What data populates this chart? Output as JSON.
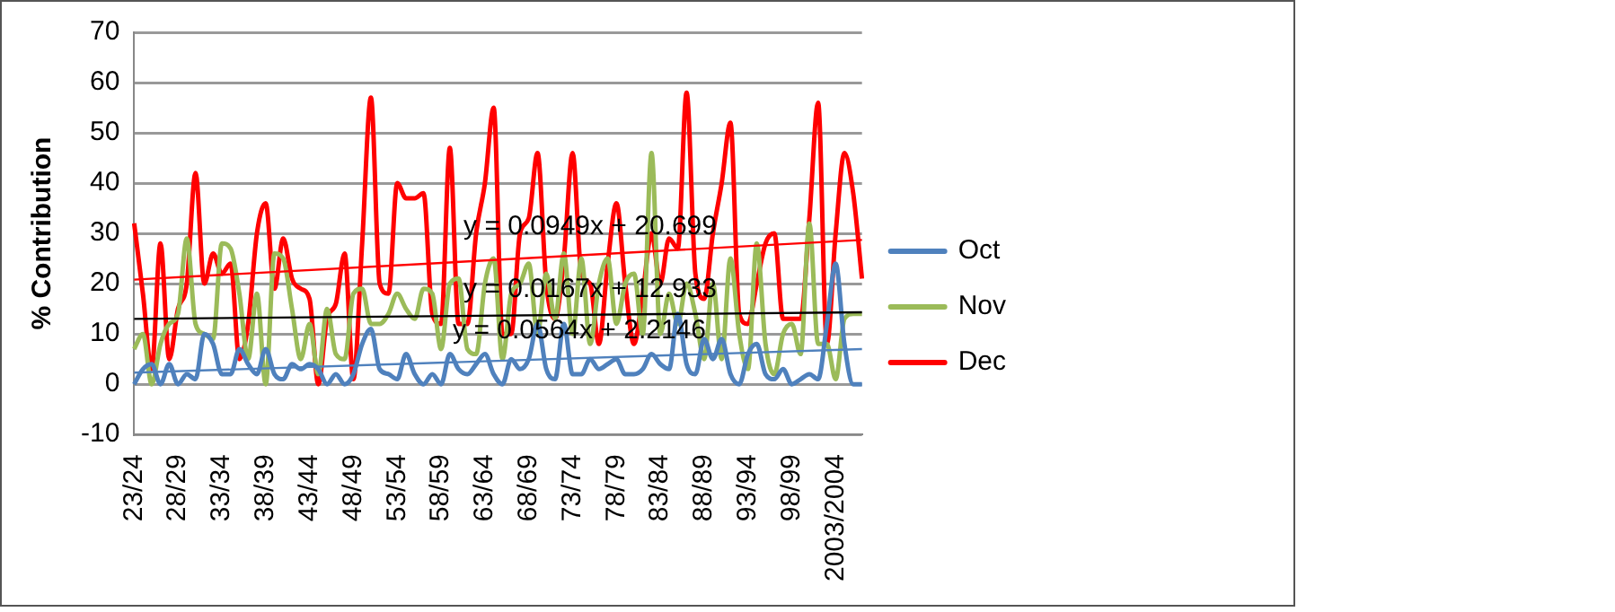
{
  "chart_data": {
    "type": "line",
    "ylabel": "% Contribution",
    "categories": [
      "23/24",
      null,
      null,
      null,
      null,
      "28/29",
      null,
      null,
      null,
      null,
      "33/34",
      null,
      null,
      null,
      null,
      "38/39",
      null,
      null,
      null,
      null,
      "43/44",
      null,
      null,
      null,
      null,
      "48/49",
      null,
      null,
      null,
      null,
      "53/54",
      null,
      null,
      null,
      null,
      "58/59",
      null,
      null,
      null,
      null,
      "63/64",
      null,
      null,
      null,
      null,
      "68/69",
      null,
      null,
      null,
      null,
      "73/74",
      null,
      null,
      null,
      null,
      "78/79",
      null,
      null,
      null,
      null,
      "83/84",
      null,
      null,
      null,
      null,
      "88/89",
      null,
      null,
      null,
      null,
      "93/94",
      null,
      null,
      null,
      null,
      "98/99",
      null,
      null,
      null,
      null,
      "2003/2004",
      null,
      null,
      null
    ],
    "series": [
      {
        "name": "Oct",
        "color": "#4f81bd",
        "values": [
          0,
          3,
          4,
          0,
          4,
          0,
          2,
          1,
          10,
          8,
          2,
          2,
          7,
          4,
          2,
          7,
          2,
          1,
          4,
          3,
          4,
          3,
          0,
          2,
          0,
          2,
          8,
          11,
          3,
          2,
          1,
          6,
          2,
          0,
          2,
          0,
          6,
          3,
          2,
          4,
          6,
          2,
          0,
          5,
          3,
          5,
          12,
          3,
          1,
          12,
          2,
          2,
          5,
          3,
          4,
          5,
          2,
          2,
          3,
          6,
          4,
          3,
          14,
          4,
          2,
          9,
          5,
          9,
          2,
          0,
          6,
          8,
          2,
          1,
          3,
          0,
          1,
          2,
          1,
          12,
          24,
          8,
          0,
          0
        ]
      },
      {
        "name": "Nov",
        "color": "#9bbb59",
        "values": [
          7,
          10,
          0,
          8,
          12,
          14,
          29,
          12,
          10,
          9,
          28,
          27,
          18,
          5,
          18,
          0,
          26,
          25,
          15,
          5,
          12,
          2,
          15,
          6,
          5,
          18,
          19,
          12,
          12,
          14,
          18,
          15,
          13,
          19,
          18,
          7,
          20,
          21,
          7,
          6,
          20,
          25,
          5,
          18,
          20,
          24,
          10,
          22,
          13,
          26,
          10,
          25,
          8,
          20,
          25,
          12,
          20,
          22,
          10,
          46,
          10,
          18,
          12,
          20,
          14,
          5,
          20,
          5,
          25,
          10,
          3,
          28,
          8,
          2,
          10,
          12,
          6,
          32,
          8,
          8,
          1,
          13,
          14,
          14
        ]
      },
      {
        "name": "Dec",
        "color": "#ff0000",
        "values": [
          32,
          18,
          3,
          28,
          5,
          15,
          20,
          42,
          20,
          26,
          22,
          24,
          5,
          12,
          30,
          36,
          19,
          29,
          21,
          19,
          17,
          0,
          13,
          16,
          26,
          1,
          28,
          57,
          20,
          18,
          40,
          37,
          37,
          38,
          14,
          12,
          47,
          12,
          12,
          30,
          40,
          55,
          10,
          10,
          30,
          33,
          46,
          20,
          13,
          25,
          46,
          22,
          20,
          8,
          24,
          36,
          20,
          8,
          18,
          30,
          20,
          29,
          27,
          58,
          22,
          17,
          30,
          40,
          52,
          14,
          12,
          20,
          28,
          30,
          13,
          13,
          13,
          33,
          56,
          8,
          30,
          46,
          38,
          21
        ]
      },
      {
        "color": "#ff0000",
        "values": [
          20.8,
          null,
          null,
          null,
          null,
          null,
          null,
          null,
          null,
          null,
          null,
          null,
          null,
          null,
          null,
          null,
          null,
          null,
          null,
          null,
          null,
          null,
          null,
          null,
          null,
          null,
          null,
          null,
          null,
          null,
          null,
          null,
          null,
          null,
          null,
          null,
          null,
          null,
          null,
          null,
          null,
          null,
          null,
          null,
          null,
          null,
          null,
          null,
          null,
          null,
          null,
          null,
          null,
          null,
          null,
          null,
          null,
          null,
          null,
          null,
          null,
          null,
          null,
          null,
          null,
          null,
          null,
          null,
          null,
          null,
          null,
          null,
          null,
          null,
          null,
          null,
          null,
          null,
          null,
          null,
          null,
          null,
          null,
          28.7
        ]
      },
      {
        "color": "#000000",
        "values": [
          13.0,
          null,
          null,
          null,
          null,
          null,
          null,
          null,
          null,
          null,
          null,
          null,
          null,
          null,
          null,
          null,
          null,
          null,
          null,
          null,
          null,
          null,
          null,
          null,
          null,
          null,
          null,
          null,
          null,
          null,
          null,
          null,
          null,
          null,
          null,
          null,
          null,
          null,
          null,
          null,
          null,
          null,
          null,
          null,
          null,
          null,
          null,
          null,
          null,
          null,
          null,
          null,
          null,
          null,
          null,
          null,
          null,
          null,
          null,
          null,
          null,
          null,
          null,
          null,
          null,
          null,
          null,
          null,
          null,
          null,
          null,
          null,
          null,
          null,
          null,
          null,
          null,
          null,
          null,
          null,
          null,
          null,
          null,
          14.3
        ]
      },
      {
        "color": "#4f81bd",
        "values": [
          2.3,
          null,
          null,
          null,
          null,
          null,
          null,
          null,
          null,
          null,
          null,
          null,
          null,
          null,
          null,
          null,
          null,
          null,
          null,
          null,
          null,
          null,
          null,
          null,
          null,
          null,
          null,
          null,
          null,
          null,
          null,
          null,
          null,
          null,
          null,
          null,
          null,
          null,
          null,
          null,
          null,
          null,
          null,
          null,
          null,
          null,
          null,
          null,
          null,
          null,
          null,
          null,
          null,
          null,
          null,
          null,
          null,
          null,
          null,
          null,
          null,
          null,
          null,
          null,
          null,
          null,
          null,
          null,
          null,
          null,
          null,
          null,
          null,
          null,
          null,
          null,
          null,
          null,
          null,
          null,
          null,
          null,
          null,
          7.0
        ]
      }
    ],
    "annotations": [
      "y = 0.0949x + 20.699",
      "y = 0.0167x + 12.933",
      "y = 0.0564x + 2.2146"
    ],
    "ylim": [
      -10,
      70
    ],
    "yticks": [
      -10,
      0,
      10,
      20,
      30,
      40,
      50,
      60,
      70
    ],
    "grid": "y",
    "legend": "right"
  }
}
